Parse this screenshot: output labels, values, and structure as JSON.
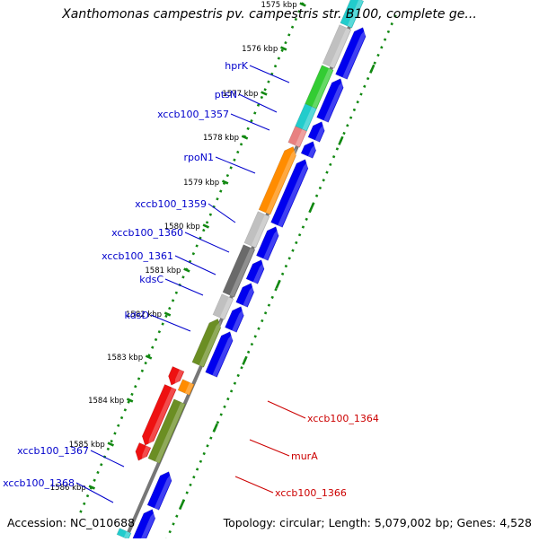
{
  "title": "Xanthomonas campestris pv. campestris str. B100, complete ge...",
  "footer": {
    "accession": "Accession: NC_010688",
    "topology": "Topology: circular; Length: 5,079,002 bp; Genes: 4,528"
  },
  "ticks": [
    {
      "label": "1575 kbp"
    },
    {
      "label": "1576 kbp"
    },
    {
      "label": "1577 kbp"
    },
    {
      "label": "1578 kbp"
    },
    {
      "label": "1579 kbp"
    },
    {
      "label": "1580 kbp"
    },
    {
      "label": "1581 kbp"
    },
    {
      "label": "1582 kbp"
    },
    {
      "label": "1583 kbp"
    },
    {
      "label": "1584 kbp"
    },
    {
      "label": "1585 kbp"
    },
    {
      "label": "1586 kbp"
    }
  ],
  "genes_forward": [
    {
      "name": "hprK"
    },
    {
      "name": "ptsN"
    },
    {
      "name": "xccb100_1357"
    },
    {
      "name": "rpoN1"
    },
    {
      "name": "xccb100_1359"
    },
    {
      "name": "xccb100_1360"
    },
    {
      "name": "xccb100_1361"
    },
    {
      "name": "kdsC"
    },
    {
      "name": "kdsD"
    },
    {
      "name": "xccb100_1367"
    },
    {
      "name": "xccb100_1368"
    }
  ],
  "genes_reverse": [
    {
      "name": "xccb100_1364"
    },
    {
      "name": "murA"
    },
    {
      "name": "xccb100_1366"
    }
  ],
  "colors": {
    "cds_blue": "#0000ee",
    "gray": "#c0c0c0",
    "dark_gray": "#6a6a6a",
    "green": "#33cc33",
    "olive": "#6b8e23",
    "orange": "#ff8c00",
    "pink": "#e88080",
    "cyan": "#22cccc",
    "red": "#ee1111",
    "tick_green": "#118811",
    "backbone": "#777777",
    "label_blue": "#0000cc",
    "label_red": "#cc0000"
  }
}
